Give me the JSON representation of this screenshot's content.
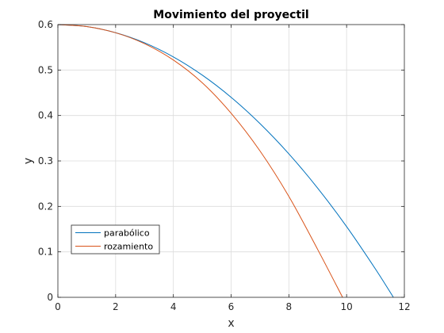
{
  "chart_data": {
    "type": "line",
    "title": "Movimiento del proyectil",
    "xlabel": "x",
    "ylabel": "y",
    "xlim": [
      0,
      12
    ],
    "ylim": [
      0,
      0.6
    ],
    "xticks": [
      "0",
      "2",
      "4",
      "6",
      "8",
      "10",
      "12"
    ],
    "yticks": [
      "0",
      "0.1",
      "0.2",
      "0.3",
      "0.4",
      "0.5",
      "0.6"
    ],
    "grid": true,
    "legend_location": "bottom-left",
    "series": [
      {
        "name": "parabólico",
        "color": "#0072BD",
        "x": [
          0,
          1,
          2,
          3,
          4,
          5,
          6,
          7,
          8,
          9,
          10,
          11,
          11.62
        ],
        "y": [
          0.6,
          0.5956,
          0.5822,
          0.56,
          0.5289,
          0.4889,
          0.44,
          0.3822,
          0.3156,
          0.24,
          0.1556,
          0.0622,
          0
        ]
      },
      {
        "name": "rozamiento",
        "color": "#D95319",
        "x": [
          0,
          1,
          2,
          3,
          4,
          5,
          6,
          7,
          8,
          9,
          9.86
        ],
        "y": [
          0.6,
          0.5956,
          0.582,
          0.558,
          0.522,
          0.472,
          0.405,
          0.322,
          0.222,
          0.105,
          0
        ]
      }
    ]
  }
}
